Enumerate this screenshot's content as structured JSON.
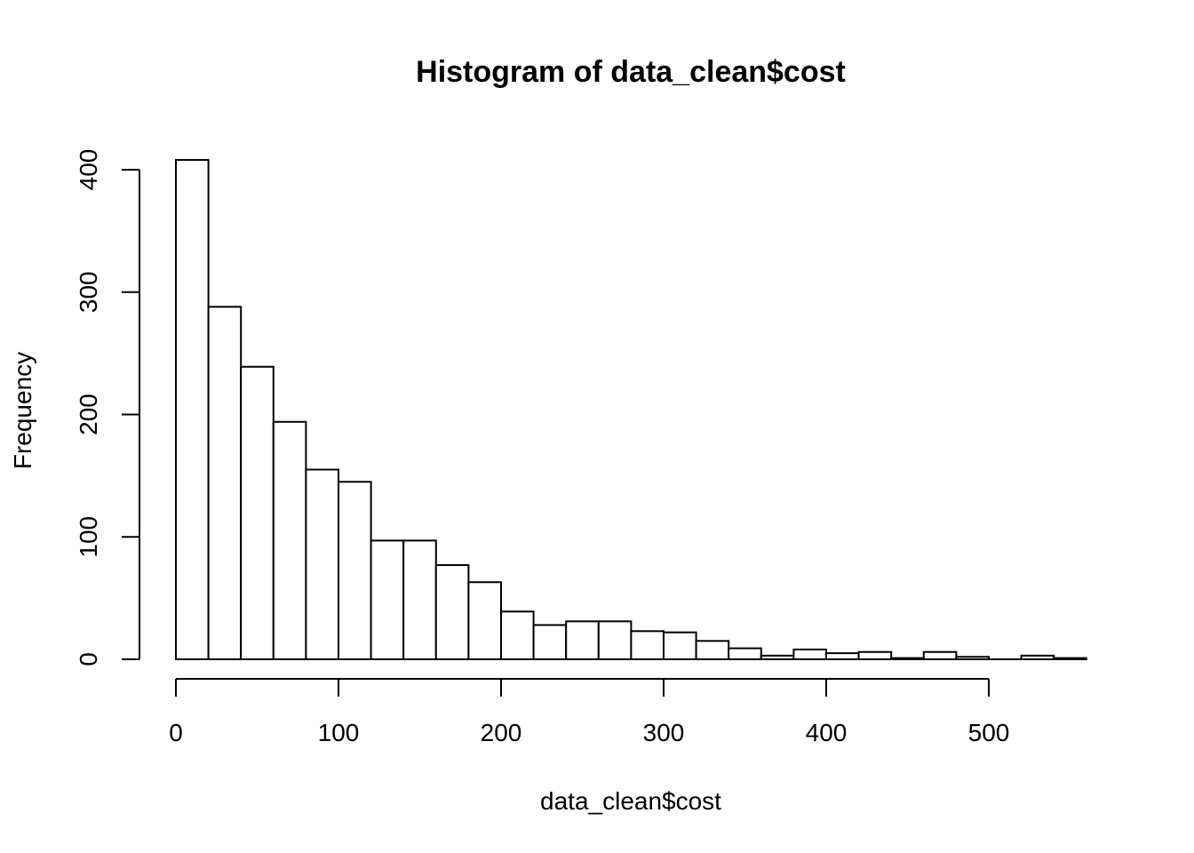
{
  "chart_data": {
    "type": "bar",
    "subtype": "histogram",
    "title": "Histogram of data_clean$cost",
    "xlabel": "data_clean$cost",
    "ylabel": "Frequency",
    "bin_width": 20,
    "bins": [
      {
        "x0": 0,
        "x1": 20,
        "count": 408
      },
      {
        "x0": 20,
        "x1": 40,
        "count": 288
      },
      {
        "x0": 40,
        "x1": 60,
        "count": 239
      },
      {
        "x0": 60,
        "x1": 80,
        "count": 194
      },
      {
        "x0": 80,
        "x1": 100,
        "count": 155
      },
      {
        "x0": 100,
        "x1": 120,
        "count": 145
      },
      {
        "x0": 120,
        "x1": 140,
        "count": 97
      },
      {
        "x0": 140,
        "x1": 160,
        "count": 97
      },
      {
        "x0": 160,
        "x1": 180,
        "count": 77
      },
      {
        "x0": 180,
        "x1": 200,
        "count": 63
      },
      {
        "x0": 200,
        "x1": 220,
        "count": 39
      },
      {
        "x0": 220,
        "x1": 240,
        "count": 28
      },
      {
        "x0": 240,
        "x1": 260,
        "count": 31
      },
      {
        "x0": 260,
        "x1": 280,
        "count": 31
      },
      {
        "x0": 280,
        "x1": 300,
        "count": 23
      },
      {
        "x0": 300,
        "x1": 320,
        "count": 22
      },
      {
        "x0": 320,
        "x1": 340,
        "count": 15
      },
      {
        "x0": 340,
        "x1": 360,
        "count": 9
      },
      {
        "x0": 360,
        "x1": 380,
        "count": 3
      },
      {
        "x0": 380,
        "x1": 400,
        "count": 8
      },
      {
        "x0": 400,
        "x1": 420,
        "count": 5
      },
      {
        "x0": 420,
        "x1": 440,
        "count": 6
      },
      {
        "x0": 440,
        "x1": 460,
        "count": 1
      },
      {
        "x0": 460,
        "x1": 480,
        "count": 6
      },
      {
        "x0": 480,
        "x1": 500,
        "count": 2
      },
      {
        "x0": 500,
        "x1": 520,
        "count": 0
      },
      {
        "x0": 520,
        "x1": 540,
        "count": 3
      },
      {
        "x0": 540,
        "x1": 560,
        "count": 1
      }
    ],
    "xlim": [
      0,
      560
    ],
    "ylim": [
      0,
      408
    ],
    "x_ticks": [
      0,
      100,
      200,
      300,
      400,
      500
    ],
    "y_ticks": [
      0,
      100,
      200,
      300,
      400
    ],
    "grid": false,
    "bar_fill": "#ffffff",
    "bar_stroke": "#000000"
  }
}
